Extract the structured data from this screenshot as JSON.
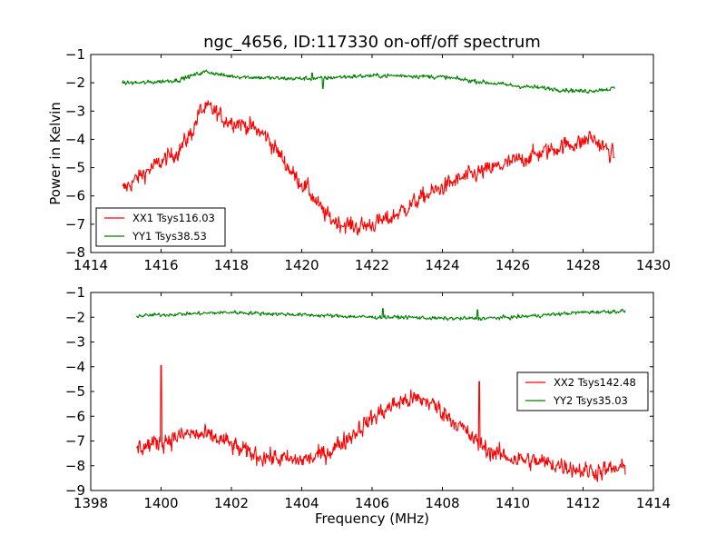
{
  "title": "ngc_4656, ID:117330 on-off/off spectrum",
  "chart_data": [
    {
      "type": "line",
      "title": "ngc_4656, ID:117330 on-off/off spectrum",
      "xlabel": "",
      "ylabel": "Power in Kelvin",
      "xlim": [
        1414,
        1430
      ],
      "ylim": [
        -8,
        -1
      ],
      "xticks": [
        1414,
        1416,
        1418,
        1420,
        1422,
        1424,
        1426,
        1428,
        1430
      ],
      "yticks": [
        -8,
        -7,
        -6,
        -5,
        -4,
        -3,
        -2,
        -1
      ],
      "grid": false,
      "legend_position": "lower-left",
      "series": [
        {
          "name": "XX1 Tsys116.03",
          "color": "#ff0000",
          "noise": 0.14,
          "x": [
            1414.9,
            1415.5,
            1416.0,
            1416.5,
            1416.9,
            1417.1,
            1417.4,
            1417.8,
            1418.2,
            1418.6,
            1419.0,
            1419.4,
            1419.8,
            1420.2,
            1420.5,
            1420.8,
            1421.2,
            1421.6,
            1422.0,
            1422.5,
            1423.0,
            1423.5,
            1424.0,
            1424.5,
            1425.0,
            1425.5,
            1426.0,
            1426.5,
            1427.0,
            1427.5,
            1428.0,
            1428.2,
            1428.5,
            1428.9
          ],
          "y": [
            -5.8,
            -5.2,
            -4.8,
            -4.4,
            -3.7,
            -3.0,
            -2.9,
            -3.3,
            -3.4,
            -3.6,
            -3.9,
            -4.6,
            -5.3,
            -5.8,
            -6.4,
            -6.8,
            -7.0,
            -7.1,
            -7.0,
            -6.8,
            -6.4,
            -6.0,
            -5.7,
            -5.4,
            -5.2,
            -5.0,
            -4.8,
            -4.6,
            -4.4,
            -4.2,
            -4.1,
            -3.9,
            -4.2,
            -4.6
          ],
          "spikes": []
        },
        {
          "name": "YY1 Tsys38.53",
          "color": "#008000",
          "noise": 0.035,
          "x": [
            1414.9,
            1415.5,
            1416.0,
            1416.5,
            1417.0,
            1417.3,
            1417.8,
            1418.5,
            1419.5,
            1420.5,
            1421.0,
            1422.0,
            1423.0,
            1424.0,
            1425.0,
            1426.0,
            1427.0,
            1428.0,
            1428.9
          ],
          "y": [
            -2.0,
            -2.0,
            -1.95,
            -1.9,
            -1.7,
            -1.6,
            -1.75,
            -1.8,
            -1.85,
            -1.85,
            -1.8,
            -1.75,
            -1.75,
            -1.8,
            -1.95,
            -2.1,
            -2.2,
            -2.3,
            -2.2
          ],
          "spikes": [
            [
              1420.3,
              -1.65
            ],
            [
              1420.6,
              -2.2
            ]
          ]
        }
      ],
      "legend": [
        {
          "label": "XX1 Tsys116.03",
          "color": "#ff0000"
        },
        {
          "label": "YY1 Tsys38.53",
          "color": "#008000"
        }
      ]
    },
    {
      "type": "line",
      "title": "",
      "xlabel": "Frequency (MHz)",
      "ylabel": "",
      "xlim": [
        1398,
        1414
      ],
      "ylim": [
        -9,
        -1
      ],
      "xticks": [
        1398,
        1400,
        1402,
        1404,
        1406,
        1408,
        1410,
        1412,
        1414
      ],
      "yticks": [
        -9,
        -8,
        -7,
        -6,
        -5,
        -4,
        -3,
        -2,
        -1
      ],
      "grid": false,
      "legend_position": "right",
      "series": [
        {
          "name": "XX2 Tsys142.48",
          "color": "#ff0000",
          "noise": 0.17,
          "x": [
            1399.3,
            1399.8,
            1400.3,
            1400.8,
            1401.3,
            1401.8,
            1402.3,
            1402.8,
            1403.3,
            1403.8,
            1404.3,
            1404.8,
            1405.3,
            1405.8,
            1406.3,
            1406.8,
            1407.2,
            1407.6,
            1408.0,
            1408.5,
            1409.0,
            1409.5,
            1410.0,
            1410.5,
            1411.0,
            1411.5,
            1412.0,
            1412.5,
            1413.2
          ],
          "y": [
            -7.3,
            -7.1,
            -6.9,
            -6.7,
            -6.8,
            -7.0,
            -7.4,
            -7.6,
            -7.7,
            -7.8,
            -7.7,
            -7.4,
            -6.9,
            -6.3,
            -5.8,
            -5.4,
            -5.3,
            -5.4,
            -5.8,
            -6.4,
            -7.1,
            -7.5,
            -7.7,
            -7.8,
            -7.9,
            -8.0,
            -8.2,
            -8.2,
            -8.1
          ],
          "spikes": [
            [
              1400.0,
              -3.95
            ],
            [
              1409.05,
              -4.6
            ]
          ]
        },
        {
          "name": "YY2 Tsys35.03",
          "color": "#008000",
          "noise": 0.035,
          "x": [
            1399.3,
            1400.0,
            1401.0,
            1402.0,
            1403.0,
            1404.0,
            1405.0,
            1406.0,
            1407.0,
            1408.0,
            1409.0,
            1410.0,
            1411.0,
            1412.0,
            1413.2
          ],
          "y": [
            -1.95,
            -1.9,
            -1.85,
            -1.8,
            -1.85,
            -1.9,
            -1.95,
            -2.0,
            -2.0,
            -2.05,
            -2.05,
            -2.0,
            -1.9,
            -1.8,
            -1.75
          ],
          "spikes": [
            [
              1406.3,
              -1.65
            ],
            [
              1409.0,
              -1.7
            ]
          ]
        }
      ],
      "legend": [
        {
          "label": "XX2 Tsys142.48",
          "color": "#ff0000"
        },
        {
          "label": "YY2 Tsys35.03",
          "color": "#008000"
        }
      ]
    }
  ]
}
